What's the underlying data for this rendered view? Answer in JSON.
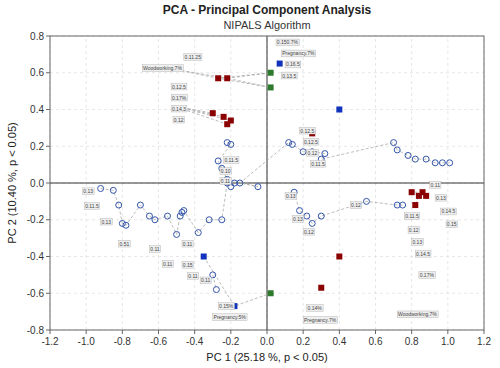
{
  "chart_data": {
    "type": "scatter",
    "title": "PCA - Principal Component Analysis",
    "subtitle": "NIPALS Algorithm",
    "x_label": "PC 1 (25.18 %, p < 0.05)",
    "y_label": "PC 2 (10.40 %, p < 0.05)",
    "xlim": [
      -1.2,
      1.2
    ],
    "ylim": [
      -0.8,
      0.8
    ],
    "xticks": [
      -1.2,
      {
        "value": -1.0,
        "label": "-1.0"
      },
      -0.8,
      -0.6,
      -0.4,
      -0.2,
      {
        "value": 0.0,
        "label": "0.0"
      },
      0.2,
      0.4,
      0.6,
      0.8,
      {
        "value": 1.0,
        "label": "1.0"
      },
      1.2
    ],
    "yticks": [
      -0.8,
      -0.6,
      -0.4,
      -0.2,
      {
        "value": 0.0,
        "label": "0.0"
      },
      0.2,
      0.4,
      0.6,
      0.8
    ],
    "grid": true,
    "series": [
      {
        "type": "line",
        "line_style": "dashed",
        "color": "#aaaaaa",
        "x": [
          -0.27,
          -0.52,
          -0.22
        ],
        "values": [
          0.57,
          0.62,
          0.57
        ]
      },
      {
        "type": "line",
        "line_style": "dashed",
        "color": "#aaaaaa",
        "x": [
          -0.52,
          -0.3,
          null,
          -0.52,
          -0.24,
          null,
          -0.52,
          -0.2,
          null,
          -0.52,
          -0.22
        ],
        "values": [
          0.42,
          0.38,
          null,
          0.42,
          0.36,
          null,
          0.42,
          0.34,
          null,
          0.42,
          0.32
        ]
      },
      {
        "type": "line",
        "line_style": "dashed",
        "color": "#aaaaaa",
        "x": [
          -0.22,
          -0.2,
          -0.27,
          -0.25,
          -0.22,
          -0.05,
          -0.15,
          0.12,
          0.14,
          0.2,
          0.25,
          0.32,
          0.3,
          0.7,
          0.72,
          0.78,
          0.82,
          0.88,
          0.93,
          0.97,
          1.01
        ],
        "values": [
          0.22,
          0.21,
          0.12,
          0.08,
          0.02,
          -0.02,
          0.0,
          0.22,
          0.21,
          0.17,
          0.17,
          0.16,
          0.13,
          0.22,
          0.18,
          0.15,
          0.13,
          0.13,
          0.11,
          0.11,
          0.11
        ]
      },
      {
        "type": "line",
        "line_style": "dashed",
        "color": "#aaaaaa",
        "x": [
          -0.92,
          -0.85,
          -0.82,
          -0.8,
          -0.78,
          -0.7,
          -0.65,
          -0.62,
          -0.55,
          -0.5,
          -0.48,
          -0.47,
          -0.46,
          -0.38,
          -0.32,
          -0.25,
          -0.22,
          -0.2,
          -0.18
        ],
        "values": [
          -0.03,
          -0.04,
          -0.12,
          -0.22,
          -0.23,
          -0.12,
          -0.18,
          -0.2,
          -0.18,
          -0.28,
          -0.18,
          -0.16,
          -0.15,
          -0.27,
          -0.2,
          -0.2,
          0.0,
          -0.02,
          0.0
        ]
      },
      {
        "type": "line",
        "line_style": "dashed",
        "color": "#aaaaaa",
        "x": [
          -0.3,
          -0.28
        ],
        "values": [
          -0.5,
          -0.58
        ]
      },
      {
        "type": "line",
        "line_style": "dashed",
        "color": "#aaaaaa",
        "x": [
          0.15,
          0.18,
          0.22,
          0.25,
          0.3,
          0.55,
          0.72,
          0.75
        ],
        "values": [
          -0.05,
          -0.15,
          -0.18,
          -0.22,
          -0.18,
          -0.1,
          -0.12,
          -0.12
        ]
      },
      {
        "type": "line",
        "line_style": "dashed",
        "color": "#aaaaaa",
        "x": [
          0.88,
          0.86,
          0.8,
          0.84,
          0.82
        ],
        "values": [
          -0.07,
          -0.05,
          -0.05,
          -0.07,
          -0.12
        ]
      },
      {
        "type": "line",
        "line_style": "dashed",
        "color": "#aaaaaa",
        "x": [
          -0.22,
          0.02,
          -0.27,
          0.02,
          -0.22
        ],
        "values": [
          0.57,
          0.6,
          0.57,
          0.52,
          0.57
        ]
      },
      {
        "type": "line",
        "line_style": "dashed",
        "color": "#aaaaaa",
        "x": [
          -0.35,
          -0.18,
          0.02
        ],
        "values": [
          -0.4,
          -0.67,
          -0.6
        ]
      },
      {
        "type": "scatter",
        "marker": "open-circle",
        "color": "#3355aa",
        "x": [
          -0.22,
          -0.2,
          -0.27,
          -0.25,
          -0.22,
          -0.05,
          -0.15
        ],
        "values": [
          0.22,
          0.21,
          0.12,
          0.08,
          0.02,
          -0.02,
          0.0
        ]
      },
      {
        "type": "scatter",
        "marker": "open-circle",
        "color": "#3355aa",
        "x": [
          0.12,
          0.14,
          0.2,
          0.25,
          0.32,
          0.3
        ],
        "values": [
          0.22,
          0.21,
          0.17,
          0.17,
          0.16,
          0.13
        ]
      },
      {
        "type": "scatter",
        "marker": "open-circle",
        "color": "#3355aa",
        "x": [
          0.7,
          0.72,
          0.78,
          0.82,
          0.88,
          0.93,
          0.97,
          1.01
        ],
        "values": [
          0.22,
          0.18,
          0.15,
          0.13,
          0.13,
          0.11,
          0.11,
          0.11
        ]
      },
      {
        "type": "scatter",
        "marker": "open-circle",
        "color": "#3355aa",
        "x": [
          -0.92,
          -0.85,
          -0.82,
          -0.8,
          -0.78,
          -0.7,
          -0.65,
          -0.62,
          -0.55,
          -0.5,
          -0.48,
          -0.47,
          -0.46,
          -0.38,
          -0.32,
          -0.25,
          -0.22,
          -0.2,
          -0.18
        ],
        "values": [
          -0.03,
          -0.04,
          -0.12,
          -0.22,
          -0.23,
          -0.12,
          -0.18,
          -0.2,
          -0.18,
          -0.28,
          -0.18,
          -0.16,
          -0.15,
          -0.27,
          -0.2,
          -0.2,
          0.0,
          -0.02,
          0.0
        ]
      },
      {
        "type": "scatter",
        "marker": "open-circle",
        "color": "#3355aa",
        "x": [
          -0.3,
          -0.28
        ],
        "values": [
          -0.5,
          -0.58
        ]
      },
      {
        "type": "scatter",
        "marker": "open-circle",
        "color": "#3355aa",
        "x": [
          0.15,
          0.18,
          0.22,
          0.25,
          0.3,
          0.55,
          0.72,
          0.75
        ],
        "values": [
          -0.05,
          -0.15,
          -0.18,
          -0.22,
          -0.18,
          -0.1,
          -0.12,
          -0.12
        ]
      },
      {
        "type": "scatter",
        "marker": "square",
        "color": "#8B0000",
        "x": [
          -0.27,
          -0.22,
          -0.3,
          -0.24,
          -0.2,
          -0.22
        ],
        "values": [
          0.57,
          0.57,
          0.38,
          0.36,
          0.34,
          0.32
        ]
      },
      {
        "type": "scatter",
        "marker": "square",
        "color": "#8B0000",
        "x": [
          0.25
        ],
        "values": [
          0.27
        ]
      },
      {
        "type": "scatter",
        "marker": "square",
        "color": "#8B0000",
        "x": [
          0.8,
          0.84,
          0.82
        ],
        "values": [
          -0.05,
          -0.07,
          -0.12
        ]
      },
      {
        "type": "scatter",
        "marker": "square",
        "color": "#8B0000",
        "x": [
          0.86,
          0.88
        ],
        "values": [
          -0.05,
          -0.07
        ]
      },
      {
        "type": "scatter",
        "marker": "square",
        "color": "#8B0000",
        "x": [
          0.4
        ],
        "values": [
          -0.4
        ]
      },
      {
        "type": "scatter",
        "marker": "square",
        "color": "#8B0000",
        "x": [
          0.3
        ],
        "values": [
          -0.57
        ]
      },
      {
        "type": "scatter",
        "marker": "square",
        "color": "#1133bb",
        "x": [
          -0.35,
          -0.18,
          0.07,
          0.4
        ],
        "values": [
          -0.4,
          -0.67,
          0.65,
          0.4
        ]
      },
      {
        "type": "scatter",
        "marker": "square",
        "color": "#2d7a2d",
        "x": [
          0.02,
          0.02,
          0.02
        ],
        "values": [
          0.6,
          0.52,
          -0.6
        ]
      }
    ],
    "annotations": [
      {
        "x": -0.46,
        "y": 0.685,
        "text": "0.11.25"
      },
      {
        "x": -0.69,
        "y": 0.625,
        "text": "Woodworking.7%"
      },
      {
        "x": -0.53,
        "y": 0.525,
        "text": "0.12.5"
      },
      {
        "x": -0.53,
        "y": 0.465,
        "text": "0.17%"
      },
      {
        "x": -0.53,
        "y": 0.405,
        "text": "0.14.3"
      },
      {
        "x": -0.52,
        "y": 0.345,
        "text": "0.12"
      },
      {
        "x": 0.05,
        "y": 0.765,
        "text": "0.150.7%"
      },
      {
        "x": 0.08,
        "y": 0.705,
        "text": "Pregnancy.7%"
      },
      {
        "x": 0.1,
        "y": 0.645,
        "text": "0.16.5"
      },
      {
        "x": 0.08,
        "y": 0.585,
        "text": "0.13.5"
      },
      {
        "x": -0.24,
        "y": 0.125,
        "text": "0.11.5"
      },
      {
        "x": -0.26,
        "y": 0.065,
        "text": "0.10"
      },
      {
        "x": -0.26,
        "y": 0.01,
        "text": "0.11"
      },
      {
        "x": 0.18,
        "y": 0.285,
        "text": "0.12.5"
      },
      {
        "x": 0.2,
        "y": 0.225,
        "text": "0.12.5"
      },
      {
        "x": 0.22,
        "y": 0.165,
        "text": "0.12"
      },
      {
        "x": 0.24,
        "y": 0.105,
        "text": "0.11.5"
      },
      {
        "x": -1.02,
        "y": -0.045,
        "text": "0.13"
      },
      {
        "x": -1.01,
        "y": -0.125,
        "text": "0.11.5"
      },
      {
        "x": -0.92,
        "y": -0.21,
        "text": "0.13"
      },
      {
        "x": -0.82,
        "y": -0.33,
        "text": "0.51"
      },
      {
        "x": -0.65,
        "y": -0.36,
        "text": "0.11"
      },
      {
        "x": -0.58,
        "y": -0.44,
        "text": "0.11"
      },
      {
        "x": -0.47,
        "y": -0.33,
        "text": "0.11"
      },
      {
        "x": -0.47,
        "y": -0.445,
        "text": "0.15"
      },
      {
        "x": -0.44,
        "y": -0.505,
        "text": "0.11"
      },
      {
        "x": -0.37,
        "y": -0.53,
        "text": "0.11"
      },
      {
        "x": -0.27,
        "y": -0.67,
        "text": "0.15%"
      },
      {
        "x": -0.3,
        "y": -0.73,
        "text": "Pregnancy.5%"
      },
      {
        "x": 0.1,
        "y": -0.07,
        "text": "0.13"
      },
      {
        "x": 0.14,
        "y": -0.195,
        "text": "0.13"
      },
      {
        "x": 0.2,
        "y": -0.265,
        "text": "0.12"
      },
      {
        "x": 0.46,
        "y": -0.12,
        "text": "0.12"
      },
      {
        "x": 0.22,
        "y": -0.68,
        "text": "0.14%"
      },
      {
        "x": 0.2,
        "y": -0.745,
        "text": "Pregnancy.7%"
      },
      {
        "x": 0.76,
        "y": -0.18,
        "text": "0.11.5"
      },
      {
        "x": 0.78,
        "y": -0.255,
        "text": "0.12"
      },
      {
        "x": 0.8,
        "y": -0.32,
        "text": "0.13"
      },
      {
        "x": 0.82,
        "y": -0.385,
        "text": "0.14.5"
      },
      {
        "x": 0.9,
        "y": -0.01,
        "text": "0.11"
      },
      {
        "x": 0.93,
        "y": -0.08,
        "text": "0.13"
      },
      {
        "x": 0.96,
        "y": -0.155,
        "text": "0.14.5"
      },
      {
        "x": 0.99,
        "y": -0.225,
        "text": "0.15"
      },
      {
        "x": 0.84,
        "y": -0.5,
        "text": "0.17%"
      },
      {
        "x": 0.72,
        "y": -0.715,
        "text": "Woodworking.7%"
      }
    ]
  }
}
